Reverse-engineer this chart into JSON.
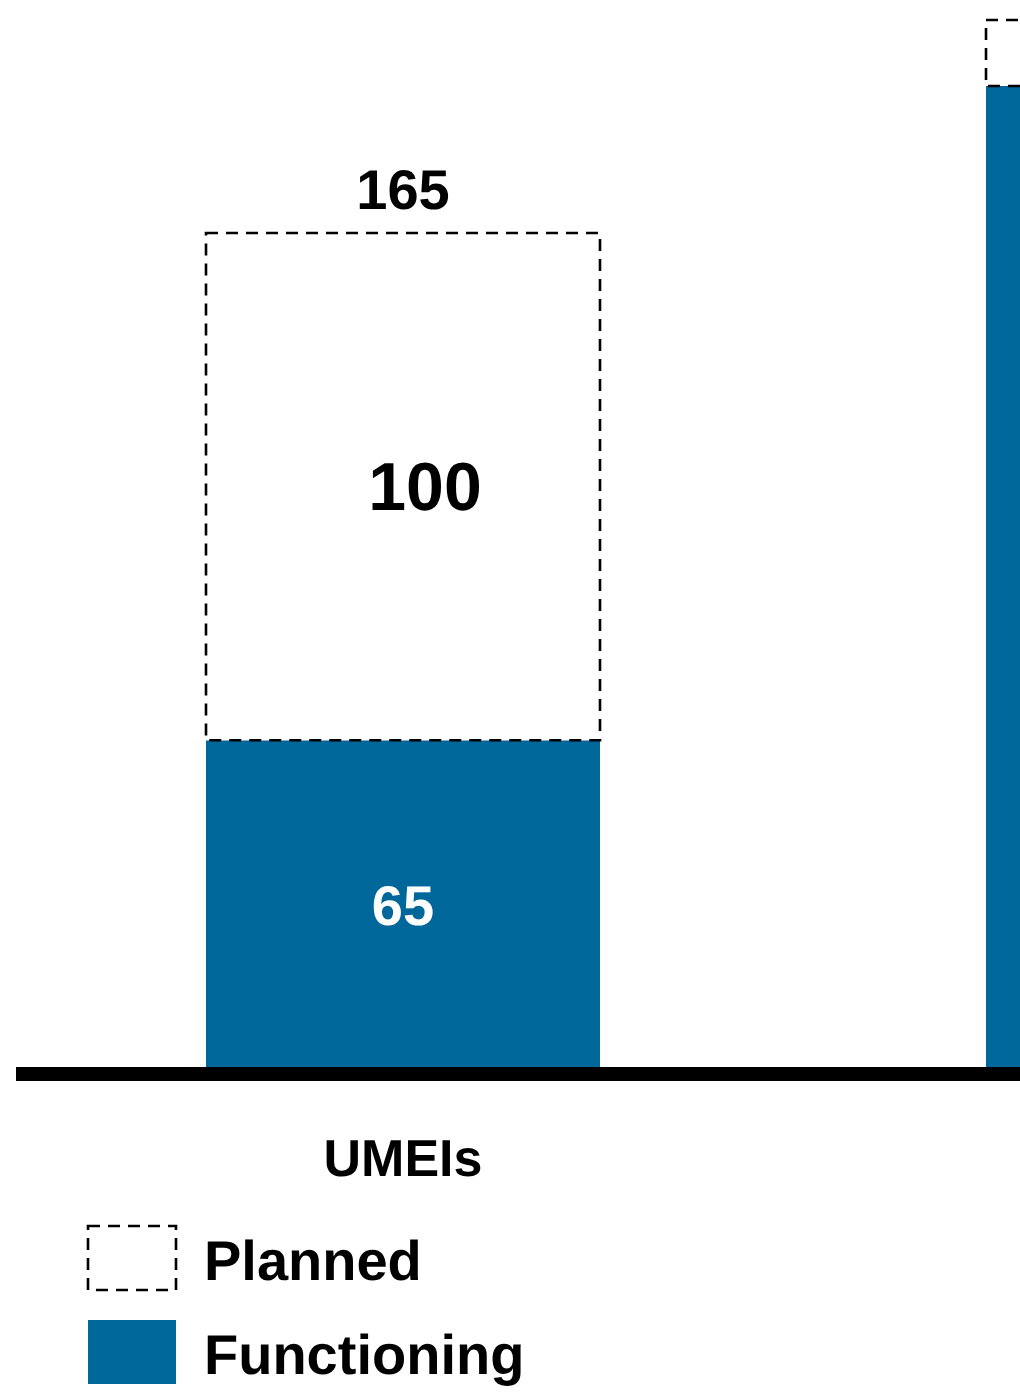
{
  "chart_data": {
    "type": "bar",
    "stacked": true,
    "categories": [
      "UMEIs",
      null
    ],
    "series": [
      {
        "name": "Functioning",
        "color": "#00679a",
        "values": [
          65,
          194
        ],
        "value_labels": [
          "65",
          null
        ]
      },
      {
        "name": "Planned",
        "color": "#ffffff",
        "values": [
          100,
          13
        ],
        "value_labels": [
          "100",
          null
        ]
      }
    ],
    "totals": [
      "165",
      null
    ],
    "legend": "bottom left"
  }
}
